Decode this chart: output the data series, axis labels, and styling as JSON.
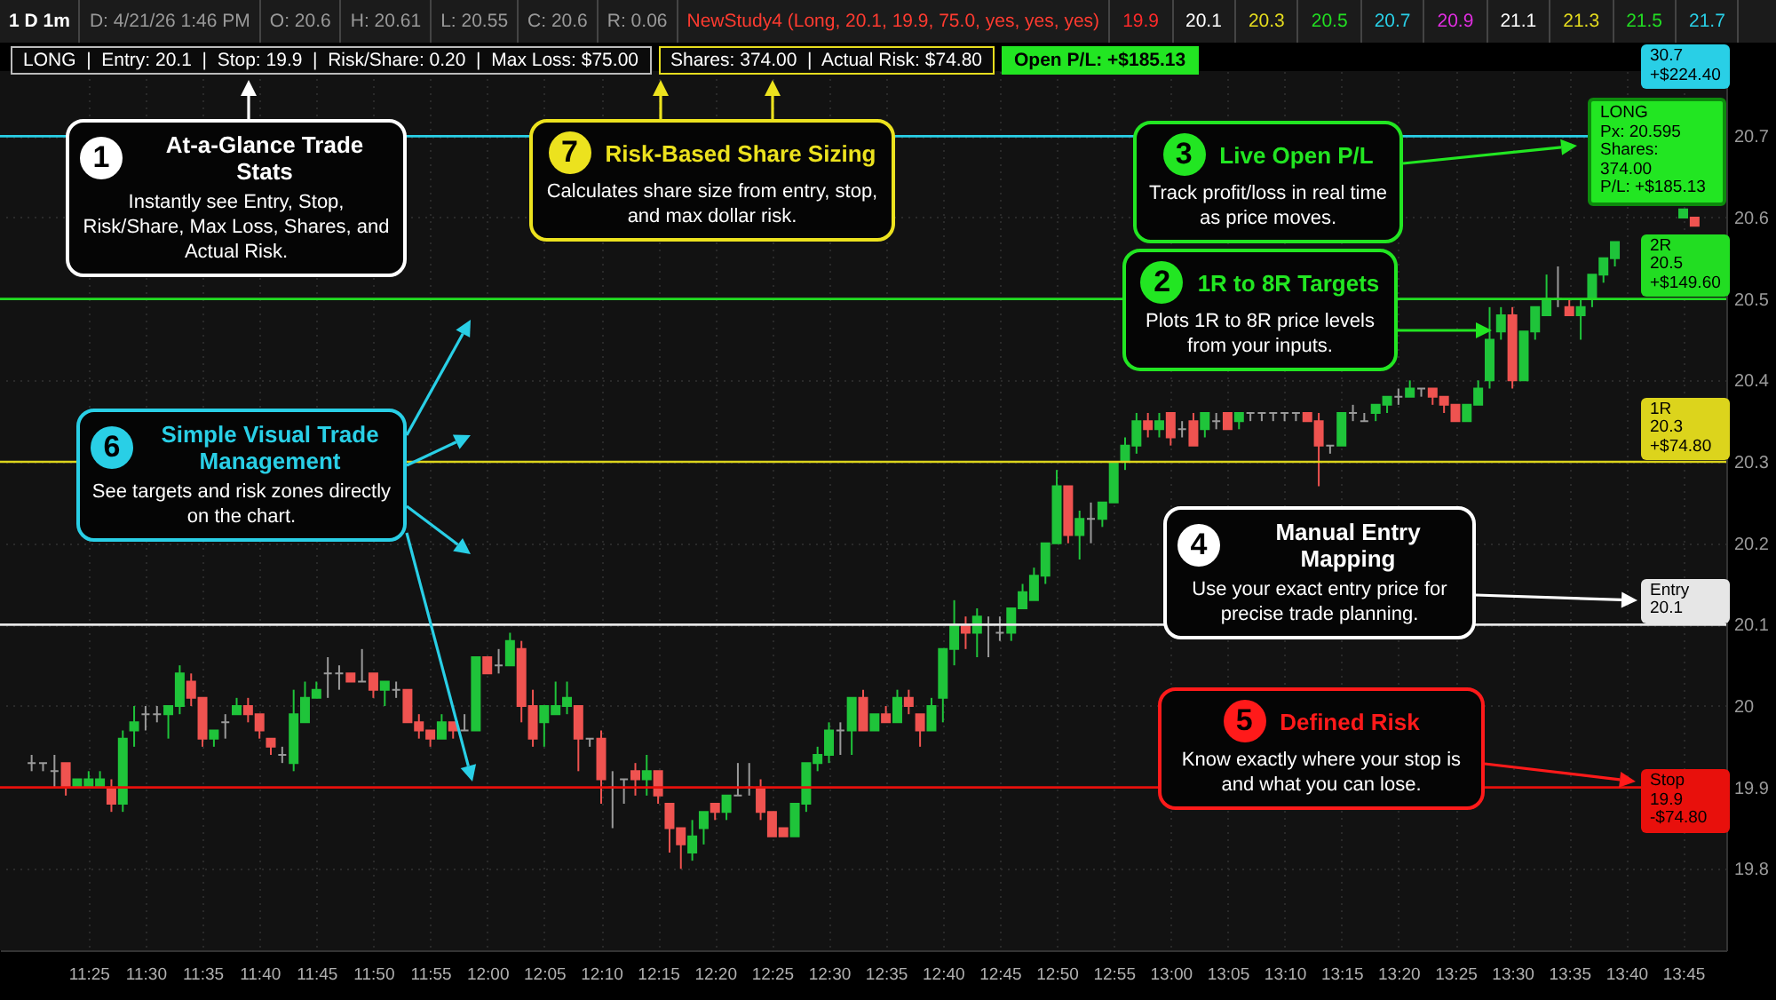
{
  "chart_data": {
    "type": "candlestick",
    "x": [
      11.3333,
      11.35,
      11.3667,
      11.3833,
      11.4,
      11.4167,
      11.4333,
      11.45,
      11.4667,
      11.4833,
      11.5,
      11.5167,
      11.5333,
      11.55,
      11.5667,
      11.5833,
      11.6,
      11.6167,
      11.6333,
      11.65,
      11.6667,
      11.6833,
      11.7,
      11.7167,
      11.7333,
      11.75,
      11.7667,
      11.7833,
      11.8,
      11.8167,
      11.8333,
      11.85,
      11.8667,
      11.8833,
      11.9,
      11.9167,
      11.9333,
      11.95,
      11.9667,
      11.9833,
      12,
      12.0167,
      12.0333,
      12.05,
      12.0667,
      12.0833,
      12.1,
      12.1167,
      12.1333,
      12.15,
      12.1667,
      12.1833,
      12.2,
      12.2167,
      12.2333,
      12.25,
      12.2667,
      12.2833,
      12.3,
      12.3167,
      12.3333,
      12.35,
      12.3667,
      12.3833,
      12.4,
      12.4167,
      12.4333,
      12.45,
      12.4667,
      12.4833,
      12.5,
      12.5167,
      12.5333,
      12.55,
      12.5667,
      12.5833,
      12.6,
      12.6167,
      12.6333,
      12.65,
      12.6667,
      12.6833,
      12.7,
      12.7167,
      12.7333,
      12.75,
      12.7667,
      12.7833,
      12.8,
      12.8167,
      12.8333,
      12.85,
      12.8667,
      12.8833,
      12.9,
      12.9167,
      12.9333,
      12.95,
      12.9667,
      12.9833,
      13,
      13.0167,
      13.0333,
      13.05,
      13.0667,
      13.0833,
      13.1,
      13.1167,
      13.1333,
      13.15,
      13.1667,
      13.1833,
      13.2,
      13.2167,
      13.2333,
      13.25,
      13.2667,
      13.2833,
      13.3,
      13.3167,
      13.3333,
      13.35,
      13.3667,
      13.3833,
      13.4,
      13.4167,
      13.4333,
      13.45,
      13.4667,
      13.4833,
      13.5,
      13.5167,
      13.5333,
      13.55,
      13.5667,
      13.5833,
      13.6,
      13.6167,
      13.6333,
      13.65,
      13.75,
      13.7667
    ],
    "ohlc": [
      [
        19.93,
        19.94,
        19.92,
        19.93
      ],
      [
        19.93,
        19.93,
        19.92,
        19.93
      ],
      [
        19.92,
        19.94,
        19.9,
        19.92
      ],
      [
        19.93,
        19.93,
        19.89,
        19.9
      ],
      [
        19.9,
        19.91,
        19.9,
        19.91
      ],
      [
        19.9,
        19.92,
        19.9,
        19.91
      ],
      [
        19.9,
        19.92,
        19.9,
        19.91
      ],
      [
        19.9,
        19.91,
        19.87,
        19.88
      ],
      [
        19.88,
        19.97,
        19.87,
        19.96
      ],
      [
        19.97,
        20.0,
        19.95,
        19.98
      ],
      [
        19.99,
        20.0,
        19.97,
        19.99
      ],
      [
        19.99,
        20.0,
        19.98,
        19.99
      ],
      [
        19.99,
        20.0,
        19.96,
        20.0
      ],
      [
        20.0,
        20.05,
        19.99,
        20.04
      ],
      [
        20.03,
        20.04,
        20.0,
        20.01
      ],
      [
        20.01,
        20.01,
        19.95,
        19.96
      ],
      [
        19.96,
        19.97,
        19.95,
        19.97
      ],
      [
        19.98,
        19.99,
        19.96,
        19.98
      ],
      [
        19.99,
        20.01,
        19.99,
        20.0
      ],
      [
        20.0,
        20.01,
        19.98,
        19.99
      ],
      [
        19.99,
        19.99,
        19.96,
        19.97
      ],
      [
        19.96,
        19.96,
        19.94,
        19.95
      ],
      [
        19.94,
        19.95,
        19.93,
        19.94
      ],
      [
        19.93,
        20.02,
        19.92,
        19.99
      ],
      [
        19.98,
        20.03,
        19.98,
        20.01
      ],
      [
        20.01,
        20.03,
        20.01,
        20.02
      ],
      [
        20.04,
        20.06,
        20.01,
        20.04
      ],
      [
        20.04,
        20.05,
        20.02,
        20.04
      ],
      [
        20.04,
        20.04,
        20.03,
        20.03
      ],
      [
        20.03,
        20.07,
        20.03,
        20.03
      ],
      [
        20.04,
        20.04,
        20.01,
        20.02
      ],
      [
        20.02,
        20.03,
        20.0,
        20.03
      ],
      [
        20.02,
        20.03,
        20.01,
        20.02
      ],
      [
        20.02,
        20.02,
        19.98,
        19.98
      ],
      [
        19.98,
        19.99,
        19.96,
        19.97
      ],
      [
        19.97,
        19.97,
        19.95,
        19.96
      ],
      [
        19.96,
        19.99,
        19.96,
        19.98
      ],
      [
        19.98,
        19.98,
        19.96,
        19.97
      ],
      [
        19.97,
        19.99,
        19.97,
        19.97
      ],
      [
        19.97,
        20.06,
        19.97,
        20.06
      ],
      [
        20.06,
        20.06,
        20.04,
        20.04
      ],
      [
        20.05,
        20.07,
        20.04,
        20.05
      ],
      [
        20.05,
        20.09,
        20.05,
        20.08
      ],
      [
        20.07,
        20.08,
        19.98,
        20.0
      ],
      [
        20.0,
        20.02,
        19.95,
        19.96
      ],
      [
        19.98,
        20.0,
        19.95,
        20.0
      ],
      [
        19.99,
        20.03,
        19.99,
        20.0
      ],
      [
        20.0,
        20.03,
        19.99,
        20.01
      ],
      [
        20.0,
        20.0,
        19.92,
        19.96
      ],
      [
        19.96,
        19.96,
        19.95,
        19.96
      ],
      [
        19.96,
        19.97,
        19.88,
        19.91
      ],
      [
        19.9,
        19.92,
        19.85,
        19.9
      ],
      [
        19.91,
        19.91,
        19.88,
        19.91
      ],
      [
        19.92,
        19.93,
        19.89,
        19.91
      ],
      [
        19.91,
        19.94,
        19.89,
        19.92
      ],
      [
        19.92,
        19.92,
        19.88,
        19.89
      ],
      [
        19.88,
        19.88,
        19.82,
        19.85
      ],
      [
        19.85,
        19.85,
        19.8,
        19.83
      ],
      [
        19.82,
        19.86,
        19.81,
        19.84
      ],
      [
        19.85,
        19.87,
        19.83,
        19.87
      ],
      [
        19.88,
        19.88,
        19.86,
        19.87
      ],
      [
        19.87,
        19.89,
        19.86,
        19.89
      ],
      [
        19.89,
        19.93,
        19.89,
        19.89
      ],
      [
        19.9,
        19.93,
        19.89,
        19.9
      ],
      [
        19.9,
        19.91,
        19.86,
        19.87
      ],
      [
        19.87,
        19.87,
        19.84,
        19.84
      ],
      [
        19.85,
        19.85,
        19.84,
        19.84
      ],
      [
        19.84,
        19.88,
        19.84,
        19.88
      ],
      [
        19.88,
        19.93,
        19.87,
        19.93
      ],
      [
        19.93,
        19.95,
        19.92,
        19.94
      ],
      [
        19.94,
        19.98,
        19.93,
        19.97
      ],
      [
        19.97,
        19.98,
        19.94,
        19.97
      ],
      [
        19.97,
        20.01,
        19.94,
        20.01
      ],
      [
        20.01,
        20.02,
        19.97,
        19.97
      ],
      [
        19.97,
        19.99,
        19.97,
        19.99
      ],
      [
        19.99,
        20.0,
        19.98,
        19.98
      ],
      [
        19.98,
        20.02,
        19.98,
        20.01
      ],
      [
        20.01,
        20.02,
        19.99,
        20.0
      ],
      [
        19.99,
        19.99,
        19.95,
        19.97
      ],
      [
        19.97,
        20.01,
        19.97,
        20.0
      ],
      [
        20.01,
        20.07,
        19.98,
        20.07
      ],
      [
        20.07,
        20.13,
        20.05,
        20.1
      ],
      [
        20.1,
        20.11,
        20.07,
        20.09
      ],
      [
        20.09,
        20.12,
        20.06,
        20.11
      ],
      [
        20.1,
        20.11,
        20.06,
        20.1
      ],
      [
        20.09,
        20.11,
        20.08,
        20.09
      ],
      [
        20.09,
        20.12,
        20.08,
        20.12
      ],
      [
        20.12,
        20.15,
        20.12,
        20.14
      ],
      [
        20.13,
        20.17,
        20.13,
        20.16
      ],
      [
        20.16,
        20.2,
        20.15,
        20.2
      ],
      [
        20.2,
        20.29,
        20.2,
        20.27
      ],
      [
        20.27,
        20.27,
        20.2,
        20.21
      ],
      [
        20.21,
        20.24,
        20.18,
        20.23
      ],
      [
        20.23,
        20.25,
        20.2,
        20.23
      ],
      [
        20.23,
        20.25,
        20.22,
        20.25
      ],
      [
        20.25,
        20.3,
        20.25,
        20.3
      ],
      [
        20.3,
        20.33,
        20.29,
        20.32
      ],
      [
        20.32,
        20.36,
        20.31,
        20.35
      ],
      [
        20.35,
        20.36,
        20.33,
        20.34
      ],
      [
        20.34,
        20.36,
        20.33,
        20.35
      ],
      [
        20.36,
        20.36,
        20.32,
        20.33
      ],
      [
        20.34,
        20.35,
        20.33,
        20.34
      ],
      [
        20.35,
        20.36,
        20.32,
        20.32
      ],
      [
        20.34,
        20.36,
        20.33,
        20.36
      ],
      [
        20.35,
        20.36,
        20.34,
        20.35
      ],
      [
        20.36,
        20.36,
        20.34,
        20.34
      ],
      [
        20.35,
        20.36,
        20.34,
        20.36
      ],
      [
        20.36,
        20.36,
        20.35,
        20.36
      ],
      [
        20.36,
        20.36,
        20.35,
        20.36
      ],
      [
        20.36,
        20.36,
        20.35,
        20.36
      ],
      [
        20.36,
        20.36,
        20.35,
        20.36
      ],
      [
        20.36,
        20.36,
        20.35,
        20.36
      ],
      [
        20.36,
        20.36,
        20.35,
        20.35
      ],
      [
        20.35,
        20.36,
        20.27,
        20.32
      ],
      [
        20.32,
        20.32,
        20.31,
        20.32
      ],
      [
        20.32,
        20.36,
        20.32,
        20.36
      ],
      [
        20.36,
        20.37,
        20.35,
        20.36
      ],
      [
        20.35,
        20.36,
        20.35,
        20.35
      ],
      [
        20.36,
        20.37,
        20.35,
        20.37
      ],
      [
        20.37,
        20.38,
        20.36,
        20.38
      ],
      [
        20.38,
        20.39,
        20.37,
        20.38
      ],
      [
        20.38,
        20.4,
        20.38,
        20.39
      ],
      [
        20.39,
        20.39,
        20.38,
        20.39
      ],
      [
        20.39,
        20.39,
        20.37,
        20.38
      ],
      [
        20.38,
        20.38,
        20.36,
        20.37
      ],
      [
        20.37,
        20.37,
        20.35,
        20.35
      ],
      [
        20.35,
        20.37,
        20.35,
        20.37
      ],
      [
        20.37,
        20.4,
        20.37,
        20.39
      ],
      [
        20.4,
        20.49,
        20.39,
        20.45
      ],
      [
        20.46,
        20.49,
        20.45,
        20.48
      ],
      [
        20.48,
        20.49,
        20.39,
        20.4
      ],
      [
        20.4,
        20.46,
        20.4,
        20.46
      ],
      [
        20.46,
        20.49,
        20.45,
        20.49
      ],
      [
        20.48,
        20.53,
        20.48,
        20.5
      ],
      [
        20.5,
        20.54,
        20.49,
        20.5
      ],
      [
        20.49,
        20.5,
        20.48,
        20.48
      ],
      [
        20.48,
        20.5,
        20.45,
        20.49
      ],
      [
        20.5,
        20.53,
        20.49,
        20.53
      ],
      [
        20.53,
        20.55,
        20.52,
        20.55
      ],
      [
        20.55,
        20.57,
        20.54,
        20.57
      ],
      [
        20.6,
        20.61,
        20.6,
        20.61
      ],
      [
        20.6,
        20.6,
        20.59,
        20.59
      ]
    ],
    "xlim": [
      11.3,
      13.8
    ],
    "xticks": [
      {
        "value": 11.4167,
        "label": "11:25"
      },
      {
        "value": 11.5,
        "label": "11:30"
      },
      {
        "value": 11.5833,
        "label": "11:35"
      },
      {
        "value": 11.6667,
        "label": "11:40"
      },
      {
        "value": 11.75,
        "label": "11:45"
      },
      {
        "value": 11.8333,
        "label": "11:50"
      },
      {
        "value": 11.9167,
        "label": "11:55"
      },
      {
        "value": 12,
        "label": "12:00"
      },
      {
        "value": 12.0833,
        "label": "12:05"
      },
      {
        "value": 12.1667,
        "label": "12:10"
      },
      {
        "value": 12.25,
        "label": "12:15"
      },
      {
        "value": 12.3333,
        "label": "12:20"
      },
      {
        "value": 12.4167,
        "label": "12:25"
      },
      {
        "value": 12.5,
        "label": "12:30"
      },
      {
        "value": 12.5833,
        "label": "12:35"
      },
      {
        "value": 12.6667,
        "label": "12:40"
      },
      {
        "value": 12.75,
        "label": "12:45"
      },
      {
        "value": 12.8333,
        "label": "12:50"
      },
      {
        "value": 12.9167,
        "label": "12:55"
      },
      {
        "value": 13,
        "label": "13:00"
      },
      {
        "value": 13.0833,
        "label": "13:05"
      },
      {
        "value": 13.1667,
        "label": "13:10"
      },
      {
        "value": 13.25,
        "label": "13:15"
      },
      {
        "value": 13.3333,
        "label": "13:20"
      },
      {
        "value": 13.4167,
        "label": "13:25"
      },
      {
        "value": 13.5,
        "label": "13:30"
      },
      {
        "value": 13.5833,
        "label": "13:35"
      },
      {
        "value": 13.6667,
        "label": "13:40"
      },
      {
        "value": 13.75,
        "label": "13:45"
      }
    ],
    "ylim": [
      19.7,
      20.78
    ],
    "yticks": [
      19.8,
      19.9,
      {
        "value": 20,
        "label": "20"
      },
      20.1,
      20.2,
      20.3,
      20.4,
      20.5,
      20.6,
      20.7
    ],
    "grid": true,
    "ref_lines": [
      {
        "axis": "y",
        "value": 20.7,
        "color": "#29cfe6"
      },
      {
        "axis": "y",
        "value": 20.5,
        "label": "2R\n20.5\n+$149.60",
        "color": "#22dd22"
      },
      {
        "axis": "y",
        "value": 20.3,
        "label": "1R\n20.3\n+$74.80",
        "color": "#dcd41c"
      },
      {
        "axis": "y",
        "value": 20.1,
        "label": "Entry\n20.1",
        "color": "#e6e6e6"
      },
      {
        "axis": "y",
        "value": 19.9,
        "label": "Stop\n19.9\n-$74.80",
        "color": "#e8100c"
      }
    ],
    "annotations": [
      "1 D 1m",
      "D: 4/21/26 1:46 PM",
      "O: 20.6",
      "H: 20.61",
      "L: 20.55",
      "C: 20.6",
      "R: 0.06",
      "NewStudy4 (Long, 20.1, 19.9, 75.0, yes, yes, yes)",
      "19.9",
      "20.1",
      "20.3",
      "20.5",
      "20.7",
      "20.9",
      "21.1",
      "21.3",
      "21.5",
      "21.7",
      "LONG  |  Entry: 20.1  |  Stop: 19.9  |  Risk/Share: 0.20  |  Max Loss: $75.00",
      "Shares: 374.00  |  Actual Risk: $74.80",
      "Open P/L: +$185.13",
      "LONG\nPx: 20.595\nShares: 374.00\nP/L: +$185.13",
      "1",
      "At-a-Glance Trade Stats",
      "Instantly see Entry, Stop, Risk/Share, Max Loss, Shares, and Actual Risk.",
      "7",
      "Risk-Based Share Sizing",
      "Calculates share size from entry, stop, and max dollar risk.",
      "3",
      "Live Open P/L",
      "Track profit/loss in real time as price moves.",
      "2",
      "1R to 8R Targets",
      "Plots 1R to 8R price levels from your inputs.",
      "6",
      "Simple Visual Trade Management",
      "See targets and risk zones directly on the chart.",
      "4",
      "Manual Entry Mapping",
      "Use your exact entry price for precise trade planning.",
      "5",
      "Defined Risk",
      "Know exactly where your stop is and what you can lose.",
      "30.7\n+$224.40"
    ]
  }
}
